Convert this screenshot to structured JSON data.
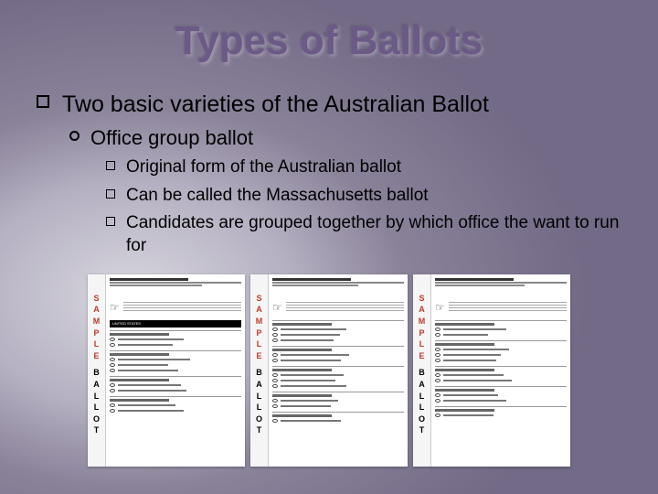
{
  "title": "Types of Ballots",
  "level1": "Two basic varieties of the Australian Ballot",
  "level2": "Office group ballot",
  "level3": {
    "a": "Original form of the Australian ballot",
    "b": "Can be called the Massachusetts ballot",
    "c": "Candidates are grouped together by which office the want to run for"
  },
  "ballot": {
    "side_letters": [
      "S",
      "A",
      "M",
      "P",
      "L",
      "E",
      "B",
      "A",
      "L",
      "L",
      "O",
      "T"
    ],
    "side_colors": [
      "red",
      "red",
      "red",
      "red",
      "red",
      "red",
      "black",
      "black",
      "black",
      "black",
      "black",
      "black"
    ],
    "black_bar_text": "UNITED STATES",
    "hand_glyph": "☞"
  },
  "colors": {
    "title": "#6b5a87",
    "red": "#c0392b",
    "black": "#000000",
    "ballot_bg": "#ffffff"
  }
}
